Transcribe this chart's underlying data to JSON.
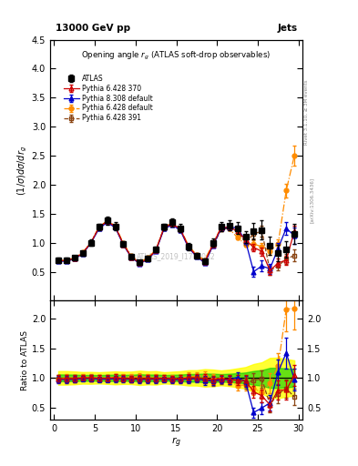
{
  "title_top": "13000 GeV pp",
  "title_right": "Jets",
  "plot_title": "Opening angle $r_g$ (ATLAS soft-drop observables)",
  "ylabel_main": "$(1/\\sigma) d\\sigma/d r_g$",
  "ylabel_ratio": "Ratio to ATLAS",
  "xlabel": "$r_g$",
  "watermark": "ATLAS_2019_I1772062",
  "right_label_top": "Rivet 3.1.10, ≥ 3M events",
  "right_label_bottom": "[arXiv:1306.3436]",
  "ylim_main": [
    0.0,
    4.5
  ],
  "ylim_ratio": [
    0.3,
    2.3
  ],
  "xlim": [
    -0.5,
    30.5
  ],
  "xticks": [
    0,
    5,
    10,
    15,
    20,
    25,
    30
  ],
  "yticks_main": [
    0.5,
    1.0,
    1.5,
    2.0,
    2.5,
    3.0,
    3.5,
    4.0,
    4.5
  ],
  "yticks_ratio": [
    0.5,
    1.0,
    1.5,
    2.0
  ],
  "x": [
    0.5,
    1.5,
    2.5,
    3.5,
    4.5,
    5.5,
    6.5,
    7.5,
    8.5,
    9.5,
    10.5,
    11.5,
    12.5,
    13.5,
    14.5,
    15.5,
    16.5,
    17.5,
    18.5,
    19.5,
    20.5,
    21.5,
    22.5,
    23.5,
    24.5,
    25.5,
    26.5,
    27.5,
    28.5,
    29.5
  ],
  "atlas_y": [
    0.7,
    0.7,
    0.74,
    0.82,
    1.0,
    1.27,
    1.38,
    1.28,
    0.98,
    0.76,
    0.66,
    0.73,
    0.88,
    1.27,
    1.35,
    1.25,
    0.93,
    0.77,
    0.68,
    1.0,
    1.28,
    1.3,
    1.25,
    1.1,
    1.2,
    1.22,
    0.95,
    0.82,
    0.88,
    1.15
  ],
  "atlas_yerr": [
    0.04,
    0.04,
    0.04,
    0.04,
    0.05,
    0.06,
    0.07,
    0.07,
    0.05,
    0.04,
    0.04,
    0.04,
    0.05,
    0.06,
    0.07,
    0.07,
    0.06,
    0.05,
    0.05,
    0.07,
    0.08,
    0.09,
    0.1,
    0.1,
    0.14,
    0.16,
    0.16,
    0.14,
    0.14,
    0.17
  ],
  "p6370_y": [
    0.69,
    0.69,
    0.73,
    0.82,
    1.0,
    1.26,
    1.37,
    1.28,
    0.97,
    0.75,
    0.65,
    0.72,
    0.87,
    1.26,
    1.33,
    1.23,
    0.93,
    0.77,
    0.67,
    0.97,
    1.26,
    1.27,
    1.2,
    1.05,
    0.92,
    0.85,
    0.52,
    0.65,
    0.7,
    1.2
  ],
  "p6370_yerr": [
    0.01,
    0.01,
    0.01,
    0.01,
    0.02,
    0.02,
    0.02,
    0.02,
    0.02,
    0.01,
    0.01,
    0.01,
    0.02,
    0.02,
    0.02,
    0.02,
    0.02,
    0.01,
    0.01,
    0.02,
    0.03,
    0.03,
    0.04,
    0.04,
    0.06,
    0.07,
    0.07,
    0.07,
    0.08,
    0.1
  ],
  "p6391_y": [
    0.69,
    0.69,
    0.73,
    0.82,
    1.0,
    1.26,
    1.37,
    1.28,
    0.97,
    0.75,
    0.65,
    0.72,
    0.87,
    1.26,
    1.33,
    1.23,
    0.93,
    0.77,
    0.67,
    0.94,
    1.23,
    1.25,
    1.2,
    1.0,
    1.15,
    1.2,
    0.52,
    0.6,
    0.72,
    0.78
  ],
  "p6391_yerr": [
    0.01,
    0.01,
    0.01,
    0.01,
    0.02,
    0.02,
    0.02,
    0.02,
    0.02,
    0.01,
    0.01,
    0.01,
    0.02,
    0.02,
    0.02,
    0.02,
    0.02,
    0.01,
    0.01,
    0.02,
    0.03,
    0.03,
    0.04,
    0.05,
    0.07,
    0.09,
    0.08,
    0.08,
    0.08,
    0.1
  ],
  "p6def_y": [
    0.69,
    0.7,
    0.74,
    0.83,
    1.01,
    1.27,
    1.38,
    1.29,
    0.99,
    0.77,
    0.67,
    0.74,
    0.88,
    1.27,
    1.34,
    1.24,
    0.95,
    0.79,
    0.7,
    0.99,
    1.26,
    1.24,
    1.09,
    0.97,
    0.98,
    0.93,
    0.86,
    0.98,
    1.9,
    2.5
  ],
  "p6def_yerr": [
    0.01,
    0.01,
    0.01,
    0.01,
    0.02,
    0.02,
    0.02,
    0.02,
    0.02,
    0.01,
    0.01,
    0.01,
    0.02,
    0.02,
    0.02,
    0.02,
    0.02,
    0.01,
    0.01,
    0.02,
    0.03,
    0.03,
    0.04,
    0.04,
    0.06,
    0.07,
    0.07,
    0.07,
    0.12,
    0.18
  ],
  "p8def_y": [
    0.68,
    0.68,
    0.72,
    0.81,
    0.99,
    1.24,
    1.35,
    1.26,
    0.96,
    0.74,
    0.64,
    0.71,
    0.86,
    1.24,
    1.31,
    1.21,
    0.91,
    0.76,
    0.65,
    0.95,
    1.24,
    1.26,
    1.26,
    1.03,
    0.5,
    0.6,
    0.55,
    0.9,
    1.25,
    1.12
  ],
  "p8def_yerr": [
    0.01,
    0.01,
    0.01,
    0.01,
    0.02,
    0.02,
    0.02,
    0.02,
    0.02,
    0.01,
    0.01,
    0.01,
    0.02,
    0.02,
    0.02,
    0.02,
    0.02,
    0.01,
    0.01,
    0.02,
    0.03,
    0.03,
    0.04,
    0.04,
    0.08,
    0.09,
    0.09,
    0.09,
    0.11,
    0.14
  ],
  "color_atlas": "#000000",
  "color_p6370": "#cc0000",
  "color_p6391": "#8b4513",
  "color_p6def": "#ff8c00",
  "color_p8def": "#0000cc",
  "band_color_yellow": "#ffff00",
  "band_color_green": "#00cc00"
}
